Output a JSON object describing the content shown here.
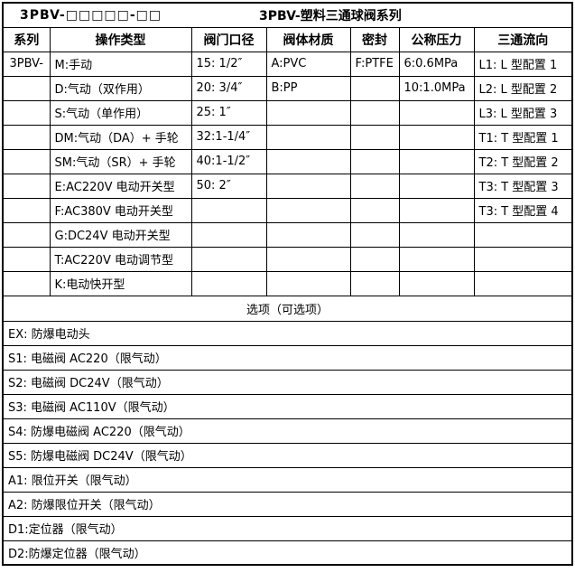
{
  "title": {
    "model_code": "3PBV-□□□□□-□□",
    "series_name": "3PBV-塑料三通球阀系列"
  },
  "table": {
    "columns": [
      "系列",
      "操作类型",
      "阀门口径",
      "阀体材质",
      "密封",
      "公称压力",
      "三通流向"
    ],
    "rows": [
      {
        "cells": [
          "3PBV-",
          "M:手动",
          "15: 1/2″",
          "A:PVC",
          "F:PTFE",
          "6:0.6MPa",
          "L1: L 型配置 1"
        ]
      },
      {
        "cells": [
          "",
          "D:气动（双作用）",
          "20: 3/4″",
          "B:PP",
          "",
          "10:1.0MPa",
          "L2: L 型配置 2"
        ]
      },
      {
        "cells": [
          "",
          "S:气动（单作用）",
          "25: 1″",
          "",
          "",
          "",
          "L3: L 型配置 3"
        ]
      },
      {
        "cells": [
          "",
          "DM:气动（DA）+ 手轮",
          "32:1-1/4″",
          "",
          "",
          "",
          "T1: T 型配置 1"
        ]
      },
      {
        "cells": [
          "",
          "SM:气动（SR）+ 手轮",
          "40:1-1/2″",
          "",
          "",
          "",
          "T2: T 型配置 2"
        ]
      },
      {
        "cells": [
          "",
          "E:AC220V 电动开关型",
          "50: 2″",
          "",
          "",
          "",
          "T3: T 型配置 3"
        ]
      },
      {
        "cells": [
          "",
          "F:AC380V 电动开关型",
          "",
          "",
          "",
          "",
          "T3: T 型配置 4"
        ]
      },
      {
        "cells": [
          "",
          "G:DC24V 电动开关型",
          "",
          "",
          "",
          "",
          ""
        ]
      },
      {
        "cells": [
          "",
          "T:AC220V 电动调节型",
          "",
          "",
          "",
          "",
          ""
        ]
      },
      {
        "cells": [
          "",
          "K:电动快开型",
          "",
          "",
          "",
          "",
          ""
        ]
      }
    ]
  },
  "options": {
    "header": "选项（可选项）",
    "items": [
      "EX: 防爆电动头",
      "S1: 电磁阀 AC220（限气动）",
      "S2: 电磁阀 DC24V（限气动）",
      "S3: 电磁阀 AC110V（限气动）",
      "S4: 防爆电磁阀 AC220（限气动）",
      "S5: 防爆电磁阀 DC24V（限气动）",
      "A1: 限位开关（限气动）",
      "A2: 防爆限位开关（限气动）",
      "D1:定位器（限气动）",
      "D2:防爆定位器（限气动）"
    ]
  }
}
